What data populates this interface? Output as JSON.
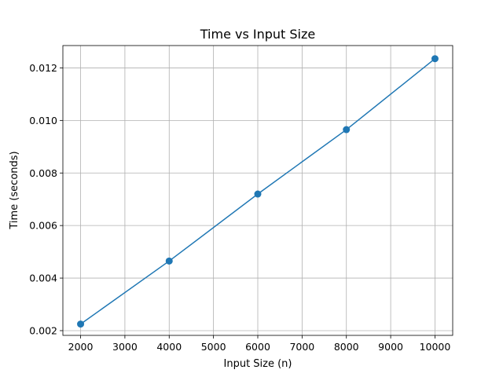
{
  "chart_data": {
    "type": "line",
    "title": "Time vs Input Size",
    "xlabel": "Input Size (n)",
    "ylabel": "Time (seconds)",
    "xlim": [
      1600,
      10400
    ],
    "ylim": [
      0.00182,
      0.01285
    ],
    "xticks": [
      2000,
      3000,
      4000,
      5000,
      6000,
      7000,
      8000,
      9000,
      10000
    ],
    "xtick_labels": [
      "2000",
      "3000",
      "4000",
      "5000",
      "6000",
      "7000",
      "8000",
      "9000",
      "10000"
    ],
    "yticks": [
      0.002,
      0.004,
      0.006,
      0.008,
      0.01,
      0.012
    ],
    "ytick_labels": [
      "0.002",
      "0.004",
      "0.006",
      "0.008",
      "0.010",
      "0.012"
    ],
    "grid": true,
    "series": [
      {
        "color": "#1f77b4",
        "marker": "circle",
        "x": [
          2000,
          4000,
          6000,
          8000,
          10000
        ],
        "y": [
          0.00225,
          0.00465,
          0.0072,
          0.00965,
          0.01235
        ]
      }
    ]
  }
}
